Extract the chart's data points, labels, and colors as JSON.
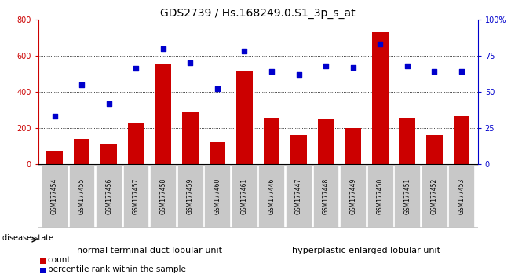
{
  "title": "GDS2739 / Hs.168249.0.S1_3p_s_at",
  "samples": [
    "GSM177454",
    "GSM177455",
    "GSM177456",
    "GSM177457",
    "GSM177458",
    "GSM177459",
    "GSM177460",
    "GSM177461",
    "GSM177446",
    "GSM177447",
    "GSM177448",
    "GSM177449",
    "GSM177450",
    "GSM177451",
    "GSM177452",
    "GSM177453"
  ],
  "counts": [
    75,
    140,
    110,
    228,
    555,
    285,
    120,
    515,
    255,
    160,
    250,
    200,
    730,
    255,
    160,
    265
  ],
  "percentiles": [
    33,
    55,
    42,
    66,
    80,
    70,
    52,
    78,
    64,
    62,
    68,
    67,
    83,
    68,
    64,
    64
  ],
  "group1_label": "normal terminal duct lobular unit",
  "group1_count": 8,
  "group2_label": "hyperplastic enlarged lobular unit",
  "group2_count": 8,
  "disease_state_label": "disease state",
  "bar_color": "#cc0000",
  "dot_color": "#0000cc",
  "left_axis_color": "#cc0000",
  "right_axis_color": "#0000cc",
  "ylim_left": [
    0,
    800
  ],
  "ylim_right": [
    0,
    100
  ],
  "yticks_left": [
    0,
    200,
    400,
    600,
    800
  ],
  "yticks_right": [
    0,
    25,
    50,
    75,
    100
  ],
  "ytick_right_labels": [
    "0",
    "25",
    "50",
    "75",
    "100%"
  ],
  "group1_color": "#66dd66",
  "group2_color": "#66dd66",
  "xticklabel_bg": "#c8c8c8",
  "legend_count_label": "count",
  "legend_percentile_label": "percentile rank within the sample",
  "grid_color": "#000000",
  "title_fontsize": 10,
  "tick_fontsize": 7,
  "label_fontsize": 8,
  "bar_width": 0.6
}
